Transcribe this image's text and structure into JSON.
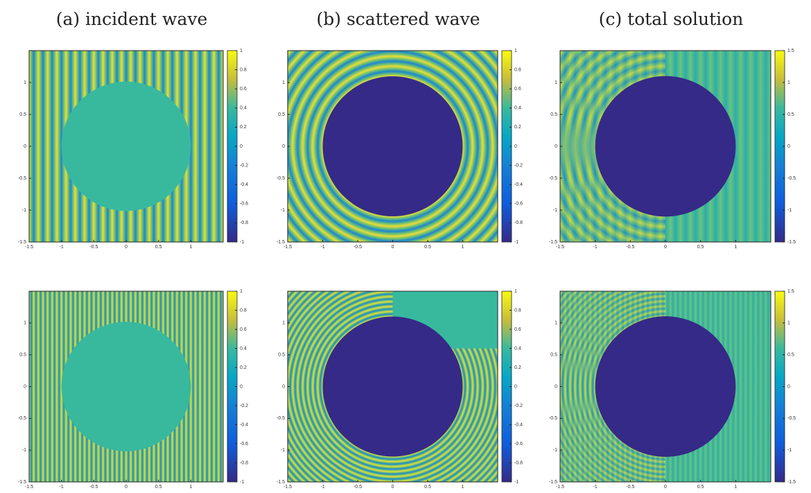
{
  "chart_data": [
    {
      "type": "heatmap",
      "title": "(a) incident wave",
      "xlim": [
        -1.5,
        1.5
      ],
      "xticks": [
        -1.5,
        -1,
        -0.5,
        0,
        0.5,
        1
      ],
      "ylim": [
        -1.5,
        1.5
      ],
      "yticks": [
        -1.5,
        -1,
        -0.5,
        0,
        0.5,
        1
      ],
      "colorbar": {
        "lim": [
          -1,
          1
        ],
        "ticks": [
          -1,
          -0.8,
          -0.6,
          -0.4,
          -0.2,
          0,
          0.2,
          0.4,
          0.6,
          0.8,
          1
        ]
      }
    },
    {
      "type": "heatmap",
      "title": "(b) scattered wave",
      "xlim": [
        -1.5,
        1.5
      ],
      "xticks": [
        -1.5,
        -1,
        -0.5,
        0,
        0.5,
        1
      ],
      "ylim": [
        -1.5,
        1.5
      ],
      "yticks": [
        -1.5,
        -1,
        -0.5,
        0,
        0.5,
        1
      ],
      "colorbar": {
        "lim": [
          -1,
          1
        ],
        "ticks": [
          -1,
          -0.8,
          -0.6,
          -0.4,
          -0.2,
          0,
          0.2,
          0.4,
          0.6,
          0.8,
          1
        ]
      }
    },
    {
      "type": "heatmap",
      "title": "(c) total solution",
      "xlim": [
        -1.5,
        1.5
      ],
      "xticks": [
        -1.5,
        -1,
        -0.5,
        0,
        0.5,
        1
      ],
      "ylim": [
        -1.5,
        1.5
      ],
      "yticks": [
        -1.5,
        -1,
        -0.5,
        0,
        0.5,
        1
      ],
      "colorbar": {
        "lim": [
          -1.5,
          1.5
        ],
        "ticks": [
          -1.5,
          -1,
          -0.5,
          0,
          0.5,
          1,
          1.5
        ]
      }
    },
    {
      "type": "heatmap",
      "xlim": [
        -1.5,
        1.5
      ],
      "xticks": [
        -1.5,
        -1,
        -0.5,
        0,
        0.5,
        1
      ],
      "ylim": [
        -1.5,
        1.5
      ],
      "yticks": [
        -1.5,
        -1,
        -0.5,
        0,
        0.5,
        1
      ],
      "colorbar": {
        "lim": [
          -1,
          1
        ],
        "ticks": [
          -1,
          -0.8,
          -0.6,
          -0.4,
          -0.2,
          0,
          0.2,
          0.4,
          0.6,
          0.8,
          1
        ]
      }
    },
    {
      "type": "heatmap",
      "xlim": [
        -1.5,
        1.5
      ],
      "xticks": [
        -1.5,
        -1,
        -0.5,
        0,
        0.5,
        1
      ],
      "ylim": [
        -1.5,
        1.5
      ],
      "yticks": [
        -1.5,
        -1,
        -0.5,
        0,
        0.5,
        1
      ],
      "colorbar": {
        "lim": [
          -1,
          1
        ],
        "ticks": [
          -1,
          -0.8,
          -0.6,
          -0.4,
          -0.2,
          0,
          0.2,
          0.4,
          0.6,
          0.8,
          1
        ]
      }
    },
    {
      "type": "heatmap",
      "xlim": [
        -1.5,
        1.5
      ],
      "xticks": [
        -1.5,
        -1,
        -0.5,
        0,
        0.5,
        1
      ],
      "ylim": [
        -1.5,
        1.5
      ],
      "yticks": [
        -1.5,
        -1,
        -0.5,
        0,
        0.5,
        1
      ],
      "colorbar": {
        "lim": [
          -1.5,
          1.5
        ],
        "ticks": [
          -1.5,
          -1,
          -0.5,
          0,
          0.5,
          1,
          1.5
        ]
      }
    }
  ]
}
